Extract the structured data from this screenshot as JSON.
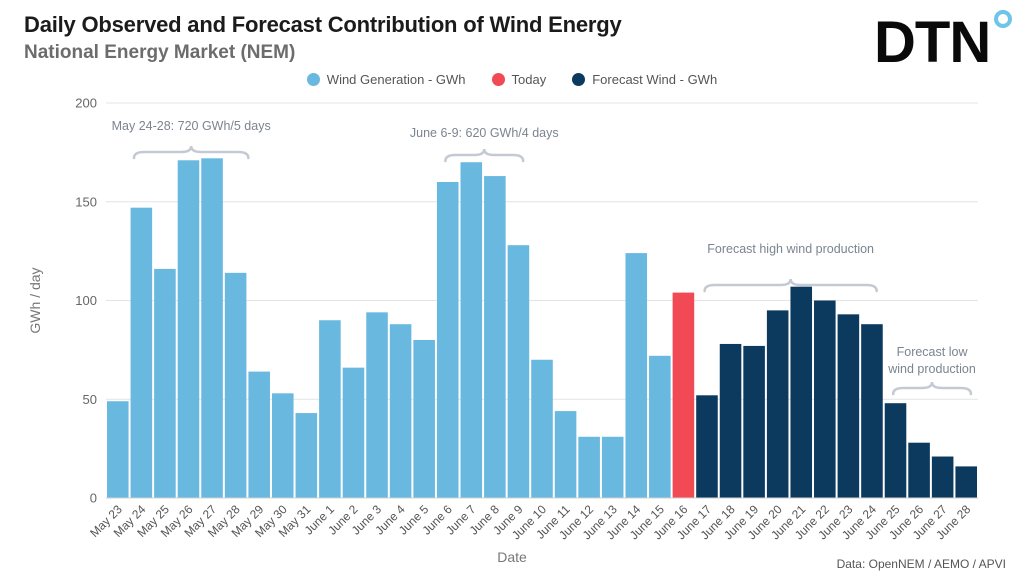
{
  "header": {
    "title": "Daily Observed and Forecast Contribution of Wind Energy",
    "subtitle": "National Energy Market (NEM)",
    "logo_text": "DTN",
    "logo_dot_color": "#6ec5e9"
  },
  "legend": [
    {
      "label": "Wind Generation - GWh",
      "color": "#69b8e0"
    },
    {
      "label": "Today",
      "color": "#f14a55"
    },
    {
      "label": "Forecast Wind - GWh",
      "color": "#0b3a5e"
    }
  ],
  "source": "Data: OpenNEM / AEMO /  APVI",
  "chart_data": {
    "type": "bar",
    "title": "Daily Observed and Forecast Contribution of Wind Energy",
    "subtitle": "National Energy Market (NEM)",
    "xlabel": "Date",
    "ylabel": "GWh / day",
    "ylim": [
      0,
      200
    ],
    "yticks": [
      0,
      50,
      100,
      150,
      200
    ],
    "grid": true,
    "legend_position": "top-center",
    "categories": [
      "May 23",
      "May 24",
      "May 25",
      "May 26",
      "May 27",
      "May 28",
      "May 29",
      "May 30",
      "May 31",
      "June 1",
      "June 2",
      "June 3",
      "June 4",
      "June 5",
      "June 6",
      "June 7",
      "June 8",
      "June 9",
      "June 10",
      "June 11",
      "June 12",
      "June 13",
      "June 14",
      "June 15",
      "June 16",
      "June 17",
      "June 18",
      "June 19",
      "June 20",
      "June 21",
      "June 22",
      "June 23",
      "June 24",
      "June 25",
      "June 26",
      "June 27",
      "June 28"
    ],
    "values": [
      49,
      147,
      116,
      171,
      172,
      114,
      64,
      53,
      43,
      90,
      66,
      94,
      88,
      80,
      160,
      170,
      163,
      128,
      70,
      44,
      31,
      31,
      124,
      72,
      104,
      52,
      78,
      77,
      95,
      107,
      100,
      93,
      88,
      48,
      28,
      21,
      16
    ],
    "colors": [
      "#69b8e0",
      "#f14a55",
      "#0b3a5e"
    ],
    "series": [
      {
        "name": "Wind Generation - GWh",
        "from": "May 23",
        "to": "June 15"
      },
      {
        "name": "Today",
        "from": "June 16",
        "to": "June 16"
      },
      {
        "name": "Forecast Wind - GWh",
        "from": "June 17",
        "to": "June 28"
      }
    ],
    "annotations": [
      {
        "text": "May 24-28: 720 GWh/5 days",
        "from": "May 24",
        "to": "May 28"
      },
      {
        "text": "June 6-9: 620 GWh/4 days",
        "from": "June 6",
        "to": "June 9"
      },
      {
        "text": "Forecast high wind production",
        "from": "June 17",
        "to": "June 24"
      },
      {
        "lines": [
          "Forecast low",
          "wind production"
        ],
        "from": "June 25",
        "to": "June 28"
      }
    ]
  }
}
